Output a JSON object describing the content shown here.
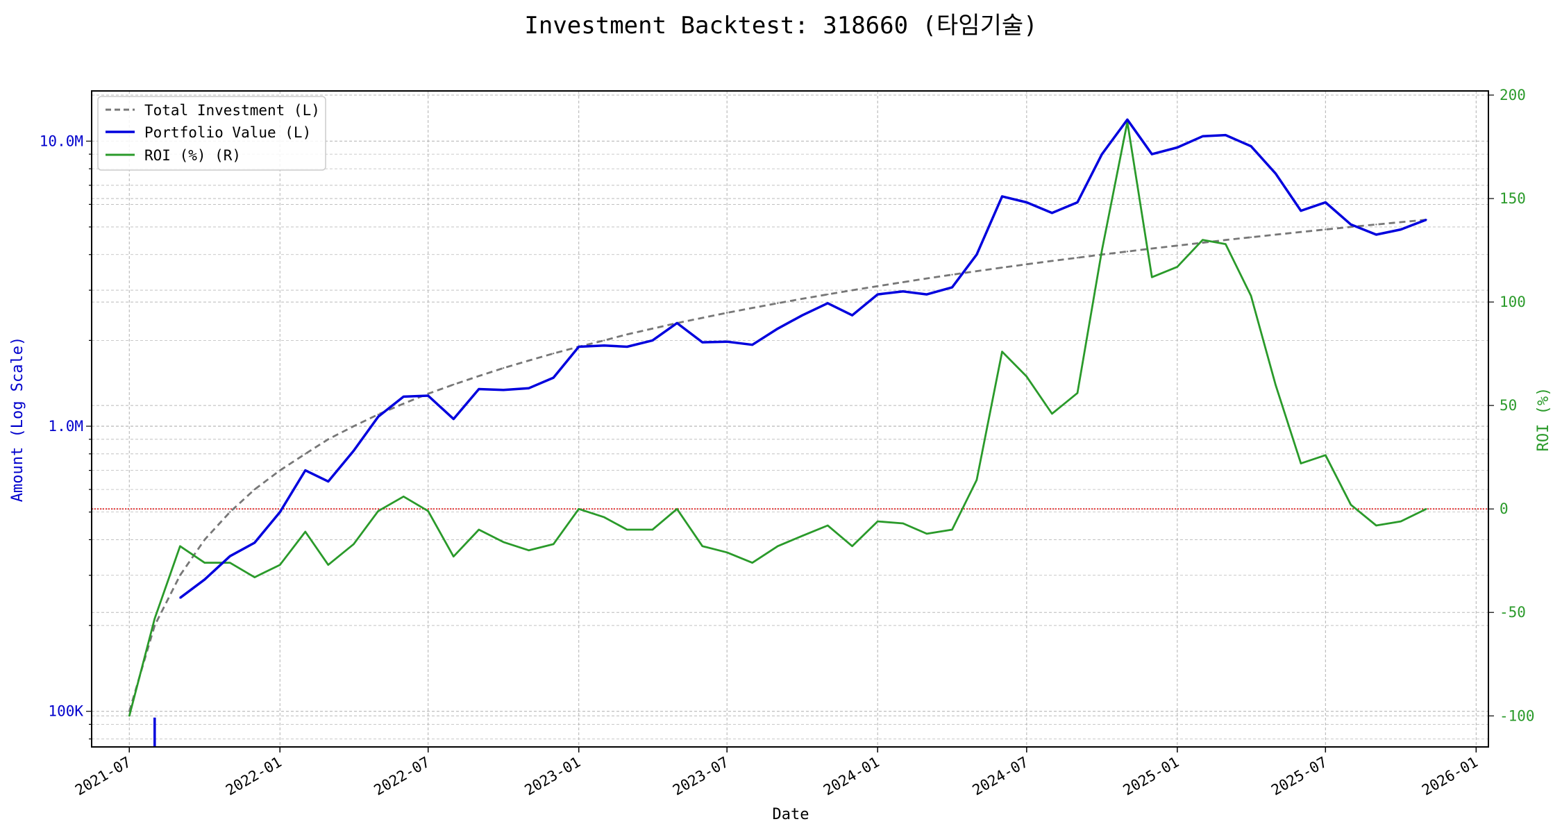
{
  "chart_data": {
    "type": "line",
    "title": "Investment Backtest: 318660 (타임기술)",
    "xlabel": "Date",
    "ylabel_left": "Amount (Log Scale)",
    "ylabel_right": "ROI (%)",
    "left_scale": "log",
    "left_ylim": [
      75000,
      15000000
    ],
    "right_ylim": [
      -115,
      202
    ],
    "x_range": [
      "2021-05-16",
      "2026-01-16"
    ],
    "grid": true,
    "legend_position": "top-left",
    "x_ticks": [
      "2021-07",
      "2022-01",
      "2022-07",
      "2023-01",
      "2023-07",
      "2024-01",
      "2024-07",
      "2025-01",
      "2025-07",
      "2026-01"
    ],
    "left_ticks": [
      {
        "value": 100000,
        "label": "100K"
      },
      {
        "value": 1000000,
        "label": "1.0M"
      },
      {
        "value": 10000000,
        "label": "10.0M"
      }
    ],
    "right_ticks": [
      -100,
      -50,
      0,
      50,
      100,
      150,
      200
    ],
    "reference_line": {
      "axis": "right",
      "value": 0,
      "color": "#e00000"
    },
    "dates": [
      "2021-07-01",
      "2021-08-01",
      "2021-09-01",
      "2021-10-01",
      "2021-11-01",
      "2021-12-01",
      "2022-01-01",
      "2022-02-01",
      "2022-03-01",
      "2022-04-01",
      "2022-05-01",
      "2022-06-01",
      "2022-07-01",
      "2022-08-01",
      "2022-09-01",
      "2022-10-01",
      "2022-11-01",
      "2022-12-01",
      "2023-01-01",
      "2023-02-01",
      "2023-03-01",
      "2023-04-01",
      "2023-05-01",
      "2023-06-01",
      "2023-07-01",
      "2023-08-01",
      "2023-09-01",
      "2023-10-01",
      "2023-11-01",
      "2023-12-01",
      "2024-01-01",
      "2024-02-01",
      "2024-03-01",
      "2024-04-01",
      "2024-05-01",
      "2024-06-01",
      "2024-07-01",
      "2024-08-01",
      "2024-09-01",
      "2024-10-01",
      "2024-11-01",
      "2024-12-01",
      "2025-01-01",
      "2025-02-01",
      "2025-03-01",
      "2025-04-01",
      "2025-05-01",
      "2025-06-01",
      "2025-07-01",
      "2025-08-01",
      "2025-09-01",
      "2025-10-01",
      "2025-11-01"
    ],
    "series": [
      {
        "name": "Total Investment (L)",
        "axis": "left",
        "color": "#777777",
        "dash": true,
        "values": [
          100000,
          200000,
          300000,
          400000,
          500000,
          600000,
          700000,
          800000,
          900000,
          1000000,
          1100000,
          1200000,
          1300000,
          1400000,
          1500000,
          1600000,
          1700000,
          1800000,
          1900000,
          2000000,
          2100000,
          2200000,
          2300000,
          2400000,
          2500000,
          2600000,
          2700000,
          2800000,
          2900000,
          3000000,
          3100000,
          3200000,
          3300000,
          3400000,
          3500000,
          3600000,
          3700000,
          3800000,
          3900000,
          4000000,
          4100000,
          4200000,
          4300000,
          4400000,
          4500000,
          4600000,
          4700000,
          4800000,
          4900000,
          5000000,
          5100000,
          5200000,
          5300000
        ]
      },
      {
        "name": "Portfolio Value (L)",
        "axis": "left",
        "color": "#0000dd",
        "dash": false,
        "values": [
          null,
          null,
          250000,
          290000,
          350000,
          390000,
          500000,
          700000,
          640000,
          820000,
          1080000,
          1270000,
          1280000,
          1060000,
          1350000,
          1340000,
          1360000,
          1480000,
          1900000,
          1920000,
          1900000,
          2000000,
          2300000,
          1970000,
          1980000,
          1930000,
          2200000,
          2450000,
          2700000,
          2450000,
          2900000,
          2970000,
          2900000,
          3070000,
          4000000,
          6400000,
          6100000,
          5600000,
          6100000,
          9000000,
          11900000,
          9000000,
          9500000,
          10400000,
          10500000,
          9600000,
          7700000,
          5700000,
          6100000,
          5100000,
          4700000,
          4900000,
          5300000
        ]
      },
      {
        "name": "ROI (%) (R)",
        "axis": "right",
        "color": "#2a9a2a",
        "dash": false,
        "values": [
          -100,
          -53,
          -18,
          -26,
          -26,
          -33,
          -27,
          -11,
          -27,
          -17,
          -1,
          6,
          -1,
          -23,
          -10,
          -16,
          -20,
          -17,
          0,
          -4,
          -10,
          -10,
          0,
          -18,
          -21,
          -26,
          -18,
          -13,
          -8,
          -18,
          -6,
          -7,
          -12,
          -10,
          14,
          76,
          64,
          46,
          56,
          125,
          187,
          112,
          117,
          130,
          128,
          103,
          60,
          22,
          26,
          2,
          -8,
          -6,
          0
        ]
      }
    ]
  }
}
